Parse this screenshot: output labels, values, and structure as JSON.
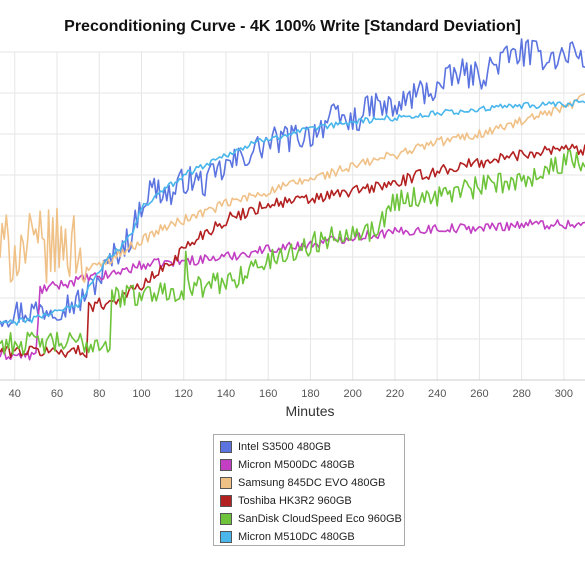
{
  "chart_data": {
    "type": "line",
    "title": "Preconditioning Curve - 4K 100% Write [Standard Deviation]",
    "xlabel": "Minutes",
    "ylabel": "",
    "xlim": [
      33,
      310
    ],
    "x_ticks": [
      40,
      60,
      80,
      100,
      120,
      140,
      160,
      180,
      200,
      220,
      240,
      260,
      280,
      300
    ],
    "ylim": [
      0,
      8
    ],
    "grid": true,
    "legend_position": "bottom",
    "series": [
      {
        "name": "Intel S3500 480GB",
        "color": "#5b74e0",
        "x": [
          33,
          50,
          70,
          80,
          88,
          95,
          100,
          105,
          110,
          115,
          120,
          130,
          140,
          150,
          160,
          170,
          180,
          190,
          200,
          210,
          220,
          230,
          240,
          250,
          260,
          270,
          280,
          290,
          300,
          305,
          310
        ],
        "y": [
          1.6,
          1.7,
          1.9,
          2.5,
          3.1,
          3.5,
          4.3,
          4.7,
          4.6,
          4.5,
          4.9,
          4.8,
          5.2,
          5.5,
          5.8,
          5.9,
          6.0,
          6.4,
          6.3,
          6.7,
          6.6,
          7.0,
          7.1,
          7.5,
          7.4,
          7.8,
          8.0,
          7.9,
          7.9,
          8.1,
          7.6
        ],
        "amp": 0.35
      },
      {
        "name": "Micron M500DC 480GB",
        "color": "#c23ec3",
        "x": [
          33,
          50,
          52,
          75,
          80,
          100,
          120,
          140,
          160,
          180,
          200,
          220,
          240,
          260,
          280,
          300,
          310
        ],
        "y": [
          0.6,
          0.6,
          2.2,
          2.5,
          2.5,
          2.8,
          2.9,
          3.0,
          3.2,
          3.3,
          3.5,
          3.6,
          3.7,
          3.7,
          3.8,
          3.8,
          3.8
        ],
        "amp": 0.12
      },
      {
        "name": "Samsung 845DC EVO 480GB",
        "color": "#f0c187",
        "x": [
          33,
          40,
          50,
          60,
          70,
          75,
          80,
          90,
          100,
          110,
          120,
          140,
          160,
          180,
          200,
          220,
          240,
          260,
          280,
          300,
          310
        ],
        "y": [
          3.2,
          3.2,
          3.2,
          3.3,
          3.3,
          2.7,
          2.8,
          3.1,
          3.4,
          3.7,
          3.9,
          4.3,
          4.6,
          4.9,
          5.2,
          5.5,
          5.8,
          6.0,
          6.3,
          6.6,
          6.9
        ],
        "amp": 0.12,
        "noisy_until": 76,
        "noisy_amp": 0.9
      },
      {
        "name": "Toshiba HK3R2 960GB",
        "color": "#b32020",
        "x": [
          33,
          70,
          74,
          75,
          85,
          100,
          110,
          120,
          130,
          140,
          160,
          180,
          200,
          220,
          240,
          260,
          280,
          300,
          310
        ],
        "y": [
          0.7,
          0.7,
          0.7,
          1.8,
          1.9,
          2.3,
          2.7,
          3.2,
          3.6,
          3.9,
          4.3,
          4.4,
          4.6,
          4.8,
          5.1,
          5.3,
          5.5,
          5.7,
          5.6
        ],
        "amp": 0.15
      },
      {
        "name": "SanDisk CloudSpeed Eco 960GB",
        "color": "#6dc43a",
        "x": [
          33,
          80,
          85,
          86,
          100,
          115,
          120,
          121,
          123,
          140,
          160,
          180,
          200,
          210,
          220,
          240,
          250,
          260,
          280,
          300,
          310
        ],
        "y": [
          0.9,
          0.9,
          0.9,
          2.0,
          2.1,
          2.2,
          2.2,
          2.9,
          2.2,
          2.4,
          2.9,
          3.3,
          3.7,
          3.6,
          4.4,
          4.5,
          4.6,
          4.7,
          4.9,
          5.3,
          5.4
        ],
        "amp": 0.28
      },
      {
        "name": "Micron M510DC 480GB",
        "color": "#49b6ec",
        "x": [
          33,
          40,
          50,
          55,
          60,
          70,
          75,
          85,
          95,
          100,
          110,
          120,
          140,
          160,
          180,
          200,
          220,
          240,
          260,
          280,
          300,
          310
        ],
        "y": [
          1.4,
          1.4,
          1.5,
          1.6,
          1.7,
          1.8,
          2.3,
          3.0,
          3.5,
          4.2,
          4.6,
          5.0,
          5.5,
          5.9,
          6.1,
          6.3,
          6.4,
          6.5,
          6.6,
          6.7,
          6.7,
          6.8
        ],
        "amp": 0.08
      }
    ]
  },
  "legend": {
    "items": [
      {
        "label": "Intel S3500 480GB",
        "color": "#5b74e0"
      },
      {
        "label": "Micron M500DC 480GB",
        "color": "#c23ec3"
      },
      {
        "label": "Samsung 845DC EVO 480GB",
        "color": "#f0c187"
      },
      {
        "label": "Toshiba HK3R2 960GB",
        "color": "#b32020"
      },
      {
        "label": "SanDisk CloudSpeed Eco 960GB",
        "color": "#6dc43a"
      },
      {
        "label": "Micron M510DC 480GB",
        "color": "#49b6ec"
      }
    ]
  }
}
